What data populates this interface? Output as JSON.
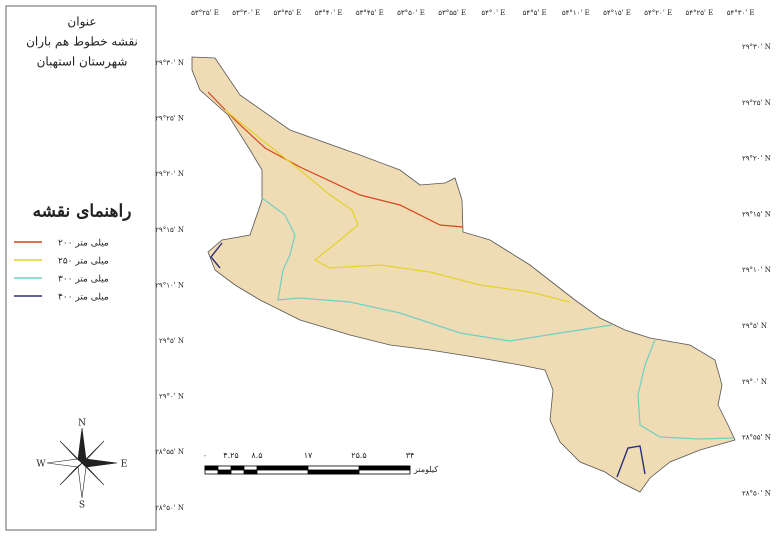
{
  "panel": {
    "heading": "عنوان",
    "title_lines": [
      "نقشه خطوط هم باران",
      "شهرستان استهبان"
    ],
    "legend_title": "راهنمای نقشه",
    "legend": [
      {
        "label": "میلی متر ۲۰۰",
        "color": "#d9421c"
      },
      {
        "label": "میلی متر ۲۵۰",
        "color": "#e3d22a"
      },
      {
        "label": "میلی متر ۳۰۰",
        "color": "#6fd0c4"
      },
      {
        "label": "میلی متر ۴۰۰",
        "color": "#2a2f7a"
      }
    ]
  },
  "compass": {
    "n": "N",
    "s": "S",
    "e": "E",
    "w": "W"
  },
  "graticule": {
    "top": [
      "۵۳°۲۵' E",
      "۵۳°۳۰' E",
      "۵۳°۳۵' E",
      "۵۳°۴۰' E",
      "۵۳°۴۵' E",
      "۵۳°۵۰' E",
      "۵۳°۵۵' E",
      "۵۴°۰' E",
      "۵۴°۵' E",
      "۵۴°۱۰' E",
      "۵۴°۱۵' E",
      "۵۴°۲۰' E",
      "۵۴°۲۵' E",
      "۵۴°۳۰' E"
    ],
    "left": [
      "۲۹°۳۰' N",
      "۲۹°۲۵' N",
      "۲۹°۲۰' N",
      "۲۹°۱۵' N",
      "۲۹°۱۰' N",
      "۲۹°۵' N",
      "۲۹°۰' N",
      "۲۸°۵۵' N",
      "۲۸°۵۰' N"
    ],
    "right": [
      "۲۹°۳۰' N",
      "۲۹°۲۵' N",
      "۲۹°۲۰' N",
      "۲۹°۱۵' N",
      "۲۹°۱۰' N",
      "۲۹°۵' N",
      "۲۹°۰' N",
      "۲۸°۵۵' N",
      "۲۸°۵۰' N"
    ]
  },
  "scale_bar": {
    "labels": [
      "۰",
      "۴.۲۵",
      "۸.۵",
      "۱۷",
      "۲۵.۵",
      "۳۴"
    ],
    "unit": "کیلومتر"
  }
}
